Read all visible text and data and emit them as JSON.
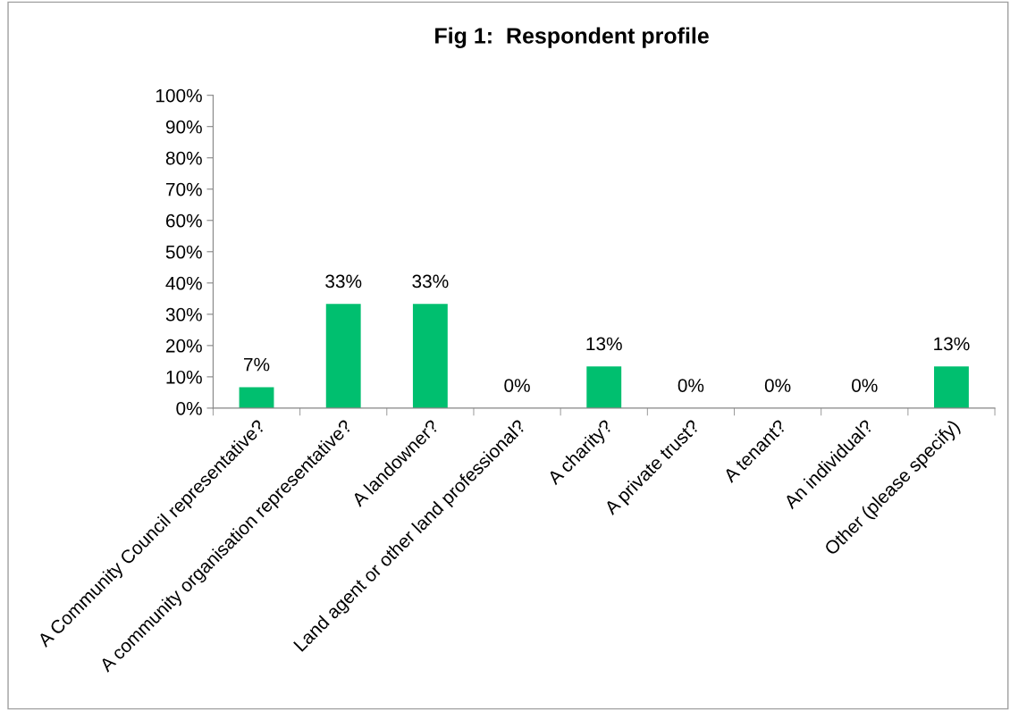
{
  "chart_data": {
    "type": "bar",
    "title": "Fig 1:  Respondent profile",
    "categories": [
      "A Community Council representative?",
      "A community organisation representative?",
      "A landowner?",
      "Land agent or other land professional?",
      "A charity?",
      "A private trust?",
      "A tenant?",
      "An individual?",
      "Other (please specify)"
    ],
    "values": [
      6.7,
      33.3,
      33.3,
      0,
      13.3,
      0,
      0,
      0,
      13.3
    ],
    "value_labels": [
      "7%",
      "33%",
      "33%",
      "0%",
      "13%",
      "0%",
      "0%",
      "0%",
      "13%"
    ],
    "color": "#00bf6f",
    "ylim": [
      0,
      100
    ],
    "yticks": [
      {
        "value": 0,
        "label": "0%"
      },
      {
        "value": 10,
        "label": "10%"
      },
      {
        "value": 20,
        "label": "20%"
      },
      {
        "value": 30,
        "label": "30%"
      },
      {
        "value": 40,
        "label": "40%"
      },
      {
        "value": 50,
        "label": "50%"
      },
      {
        "value": 60,
        "label": "60%"
      },
      {
        "value": 70,
        "label": "70%"
      },
      {
        "value": 80,
        "label": "80%"
      },
      {
        "value": 90,
        "label": "90%"
      },
      {
        "value": 100,
        "label": "100%"
      }
    ],
    "grid": false
  }
}
